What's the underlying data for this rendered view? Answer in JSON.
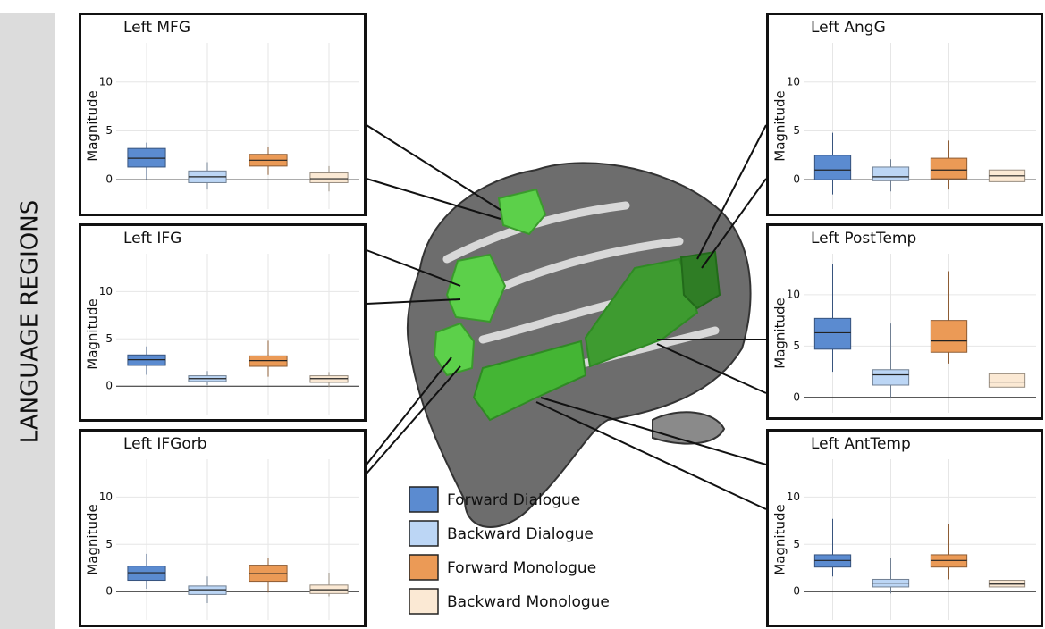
{
  "side_label": "LANGUAGE REGIONS",
  "chart_data": [
    {
      "type": "box",
      "title": "Left MFG",
      "y_label": "Magnitude",
      "ylim": [
        -3,
        14
      ],
      "yticks": [
        0,
        5,
        10
      ],
      "series": [
        {
          "name": "Forward Dialogue",
          "color": "#5b8bd0",
          "values": [
            0,
            1.3,
            2.2,
            3.2,
            3.8
          ]
        },
        {
          "name": "Backward Dialogue",
          "color": "#bcd6f5",
          "values": [
            -1,
            -0.3,
            0.3,
            0.9,
            1.8
          ]
        },
        {
          "name": "Forward Monologue",
          "color": "#eb9a56",
          "values": [
            0.5,
            1.4,
            2,
            2.6,
            3.4
          ]
        },
        {
          "name": "Backward Monologue",
          "color": "#fbe9d4",
          "values": [
            -1.2,
            -0.3,
            0.1,
            0.7,
            1.4
          ]
        }
      ]
    },
    {
      "type": "box",
      "title": "Left IFG",
      "y_label": "Magnitude",
      "ylim": [
        -3,
        14
      ],
      "yticks": [
        0,
        5,
        10
      ],
      "series": [
        {
          "name": "Forward Dialogue",
          "color": "#5b8bd0",
          "values": [
            1.2,
            2.2,
            2.8,
            3.3,
            4.2
          ]
        },
        {
          "name": "Backward Dialogue",
          "color": "#bcd6f5",
          "values": [
            0.1,
            0.5,
            0.8,
            1.1,
            1.6
          ]
        },
        {
          "name": "Forward Monologue",
          "color": "#eb9a56",
          "values": [
            1,
            2.1,
            2.7,
            3.2,
            4.8
          ]
        },
        {
          "name": "Backward Monologue",
          "color": "#fbe9d4",
          "values": [
            -0.1,
            0.4,
            0.8,
            1.1,
            1.5
          ]
        }
      ]
    },
    {
      "type": "box",
      "title": "Left IFGorb",
      "y_label": "Magnitude",
      "ylim": [
        -3,
        14
      ],
      "yticks": [
        0,
        5,
        10
      ],
      "series": [
        {
          "name": "Forward Dialogue",
          "color": "#5b8bd0",
          "values": [
            0.3,
            1.2,
            2,
            2.7,
            4
          ]
        },
        {
          "name": "Backward Dialogue",
          "color": "#bcd6f5",
          "values": [
            -1.2,
            -0.3,
            0.2,
            0.6,
            1.6
          ]
        },
        {
          "name": "Forward Monologue",
          "color": "#eb9a56",
          "values": [
            -0.1,
            1.1,
            1.9,
            2.8,
            3.6
          ]
        },
        {
          "name": "Backward Monologue",
          "color": "#fbe9d4",
          "values": [
            -0.5,
            -0.2,
            0.2,
            0.7,
            2
          ]
        }
      ]
    },
    {
      "type": "box",
      "title": "Left AngG",
      "y_label": "Magnitude",
      "ylim": [
        -3,
        14
      ],
      "yticks": [
        0,
        5,
        10
      ],
      "series": [
        {
          "name": "Forward Dialogue",
          "color": "#5b8bd0",
          "values": [
            -1.5,
            0,
            1,
            2.5,
            4.8
          ]
        },
        {
          "name": "Backward Dialogue",
          "color": "#bcd6f5",
          "values": [
            -1.2,
            -0.1,
            0.3,
            1.3,
            2.1
          ]
        },
        {
          "name": "Forward Monologue",
          "color": "#eb9a56",
          "values": [
            -1,
            0.1,
            1,
            2.2,
            4
          ]
        },
        {
          "name": "Backward Monologue",
          "color": "#fbe9d4",
          "values": [
            -1.5,
            -0.2,
            0.4,
            1,
            2.3
          ]
        }
      ]
    },
    {
      "type": "box",
      "title": "Left PostTemp",
      "y_label": "Magnitude",
      "ylim": [
        -1.5,
        14
      ],
      "yticks": [
        0,
        5,
        10
      ],
      "series": [
        {
          "name": "Forward Dialogue",
          "color": "#5b8bd0",
          "values": [
            2.5,
            4.7,
            6.3,
            7.7,
            13
          ]
        },
        {
          "name": "Backward Dialogue",
          "color": "#bcd6f5",
          "values": [
            0,
            1.2,
            2.2,
            2.7,
            7.2
          ]
        },
        {
          "name": "Forward Monologue",
          "color": "#eb9a56",
          "values": [
            3.3,
            4.4,
            5.5,
            7.5,
            12.3
          ]
        },
        {
          "name": "Backward Monologue",
          "color": "#fbe9d4",
          "values": [
            -0.1,
            1,
            1.5,
            2.3,
            7.5
          ]
        }
      ]
    },
    {
      "type": "box",
      "title": "Left AntTemp",
      "y_label": "Magnitude",
      "ylim": [
        -3,
        14
      ],
      "yticks": [
        0,
        5,
        10
      ],
      "series": [
        {
          "name": "Forward Dialogue",
          "color": "#5b8bd0",
          "values": [
            1.6,
            2.6,
            3.3,
            3.9,
            7.7
          ]
        },
        {
          "name": "Backward Dialogue",
          "color": "#bcd6f5",
          "values": [
            -0.2,
            0.5,
            0.9,
            1.3,
            3.6
          ]
        },
        {
          "name": "Forward Monologue",
          "color": "#eb9a56",
          "values": [
            1.3,
            2.6,
            3.3,
            3.9,
            7.1
          ]
        },
        {
          "name": "Backward Monologue",
          "color": "#fbe9d4",
          "values": [
            -0.1,
            0.5,
            0.8,
            1.2,
            2.6
          ]
        }
      ]
    }
  ]
}
